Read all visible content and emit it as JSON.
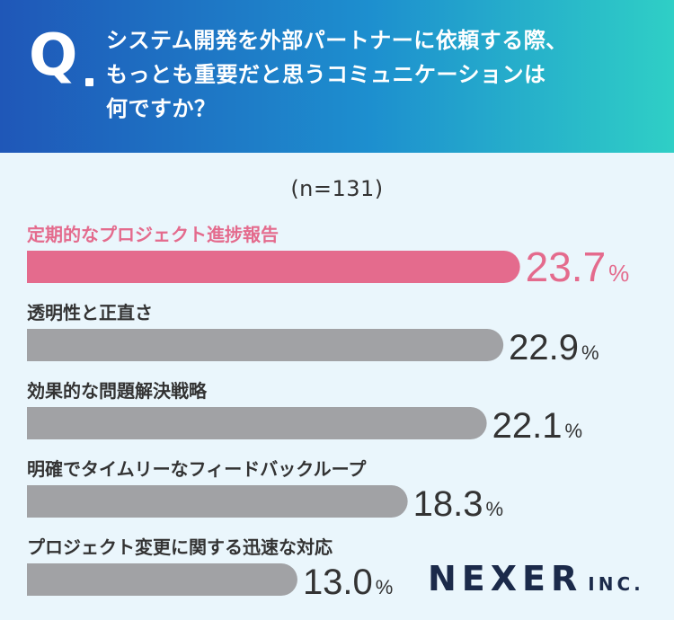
{
  "header": {
    "q_mark": "Q",
    "question_lines": [
      "システム開発を外部パートナーに依頼する際、",
      "もっとも重要だと思うコミュニケーションは",
      "何ですか？"
    ]
  },
  "sample_size": "(n=131)",
  "colors": {
    "highlight": "#e46b8d",
    "bar": "#a1a2a5",
    "text": "#333333"
  },
  "chart_data": {
    "type": "bar",
    "orientation": "horizontal",
    "unit": "%",
    "categories": [
      "定期的なプロジェクト進捗報告",
      "透明性と正直さ",
      "効果的な問題解決戦略",
      "明確でタイムリーなフィードバックループ",
      "プロジェクト変更に関する迅速な対応"
    ],
    "values": [
      23.7,
      22.9,
      22.1,
      18.3,
      13.0
    ],
    "value_labels": [
      "23.7",
      "22.9",
      "22.1",
      "18.3",
      "13.0"
    ],
    "highlight_index": 0
  },
  "logo": {
    "main": "NEXER",
    "sub": "INC."
  }
}
